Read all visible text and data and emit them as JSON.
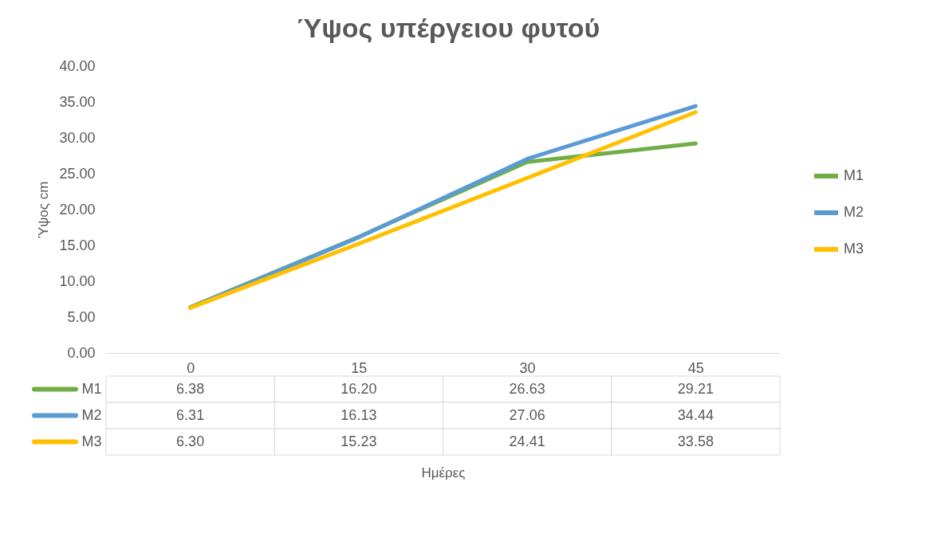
{
  "chart_data": {
    "type": "line",
    "title": "Ύψος υπέργειου φυτού",
    "annotations": [
      "Ημέρες"
    ],
    "ylabel": "Ύψος cm",
    "categories": [
      "0",
      "15",
      "30",
      "45"
    ],
    "ylim": [
      0,
      40
    ],
    "yticks": [
      {
        "value": 0,
        "label": "0.00"
      },
      {
        "value": 5,
        "label": "5.00"
      },
      {
        "value": 10,
        "label": "10.00"
      },
      {
        "value": 15,
        "label": "15.00"
      },
      {
        "value": 20,
        "label": "20.00"
      },
      {
        "value": 25,
        "label": "25.00"
      },
      {
        "value": 30,
        "label": "30.00"
      },
      {
        "value": 35,
        "label": "35.00"
      },
      {
        "value": 40,
        "label": "40.00"
      }
    ],
    "legend": "right",
    "series": [
      {
        "name": "M1",
        "color": "#70ad47",
        "values": [
          6.38,
          16.2,
          26.63,
          29.21
        ],
        "value_labels": [
          "6.38",
          "16.20",
          "26.63",
          "29.21"
        ]
      },
      {
        "name": "M2",
        "color": "#5b9bd5",
        "values": [
          6.31,
          16.13,
          27.06,
          34.44
        ],
        "value_labels": [
          "6.31",
          "16.13",
          "27.06",
          "34.44"
        ]
      },
      {
        "name": "M3",
        "color": "#ffc000",
        "values": [
          6.3,
          15.23,
          24.41,
          33.58
        ],
        "value_labels": [
          "6.30",
          "15.23",
          "24.41",
          "33.58"
        ]
      }
    ]
  }
}
